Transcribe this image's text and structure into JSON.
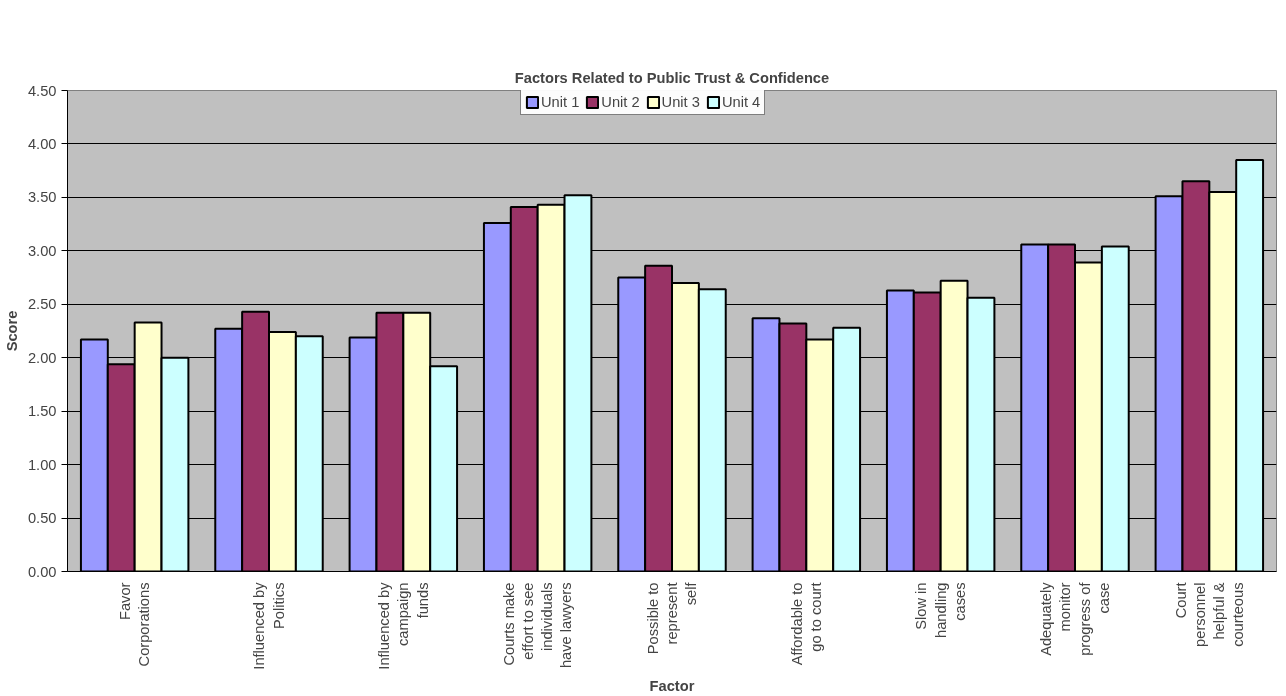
{
  "chart_data": {
    "type": "bar",
    "title": "Factors Related to Public Trust & Confidence",
    "xlabel": "Factor",
    "ylabel": "Score",
    "categories": [
      "Favor\nCorporations",
      "Influenced by\nPolitics",
      "Influenced by\ncampaign\nfunds",
      "Courts make\neffort to see\nindividuals\nhave lawyers",
      "Possible to\nrepresent\nself",
      "Affordable to\ngo to court",
      "Slow in\nhandling\ncases",
      "Adequately\nmonitor\nprogress of\ncase",
      "Court\npersonnel\nhelpful &\ncourteous"
    ],
    "series": [
      {
        "name": "Unit 1",
        "color": "#9999ff",
        "values": [
          2.17,
          2.27,
          2.19,
          3.26,
          2.75,
          2.37,
          2.63,
          3.06,
          3.51
        ]
      },
      {
        "name": "Unit 2",
        "color": "#993366",
        "values": [
          1.94,
          2.43,
          2.42,
          3.41,
          2.86,
          2.32,
          2.61,
          3.06,
          3.65
        ]
      },
      {
        "name": "Unit 3",
        "color": "#ffffcc",
        "values": [
          2.33,
          2.24,
          2.42,
          3.43,
          2.7,
          2.17,
          2.72,
          2.89,
          3.55
        ]
      },
      {
        "name": "Unit 4",
        "color": "#ccffff",
        "values": [
          2.0,
          2.2,
          1.92,
          3.52,
          2.64,
          2.28,
          2.56,
          3.04,
          3.85
        ]
      }
    ],
    "ylim": [
      0,
      4.5
    ],
    "yticks": [
      {
        "value": 0,
        "label": "0.00"
      },
      {
        "value": 0.5,
        "label": "0.50"
      },
      {
        "value": 1,
        "label": "1.00"
      },
      {
        "value": 1.5,
        "label": "1.50"
      },
      {
        "value": 2,
        "label": "2.00"
      },
      {
        "value": 2.5,
        "label": "2.50"
      },
      {
        "value": 3,
        "label": "3.00"
      },
      {
        "value": 3.5,
        "label": "3.50"
      },
      {
        "value": 4,
        "label": "4.00"
      },
      {
        "value": 4.5,
        "label": "4.50"
      }
    ],
    "grid": "y",
    "legend": "top"
  }
}
